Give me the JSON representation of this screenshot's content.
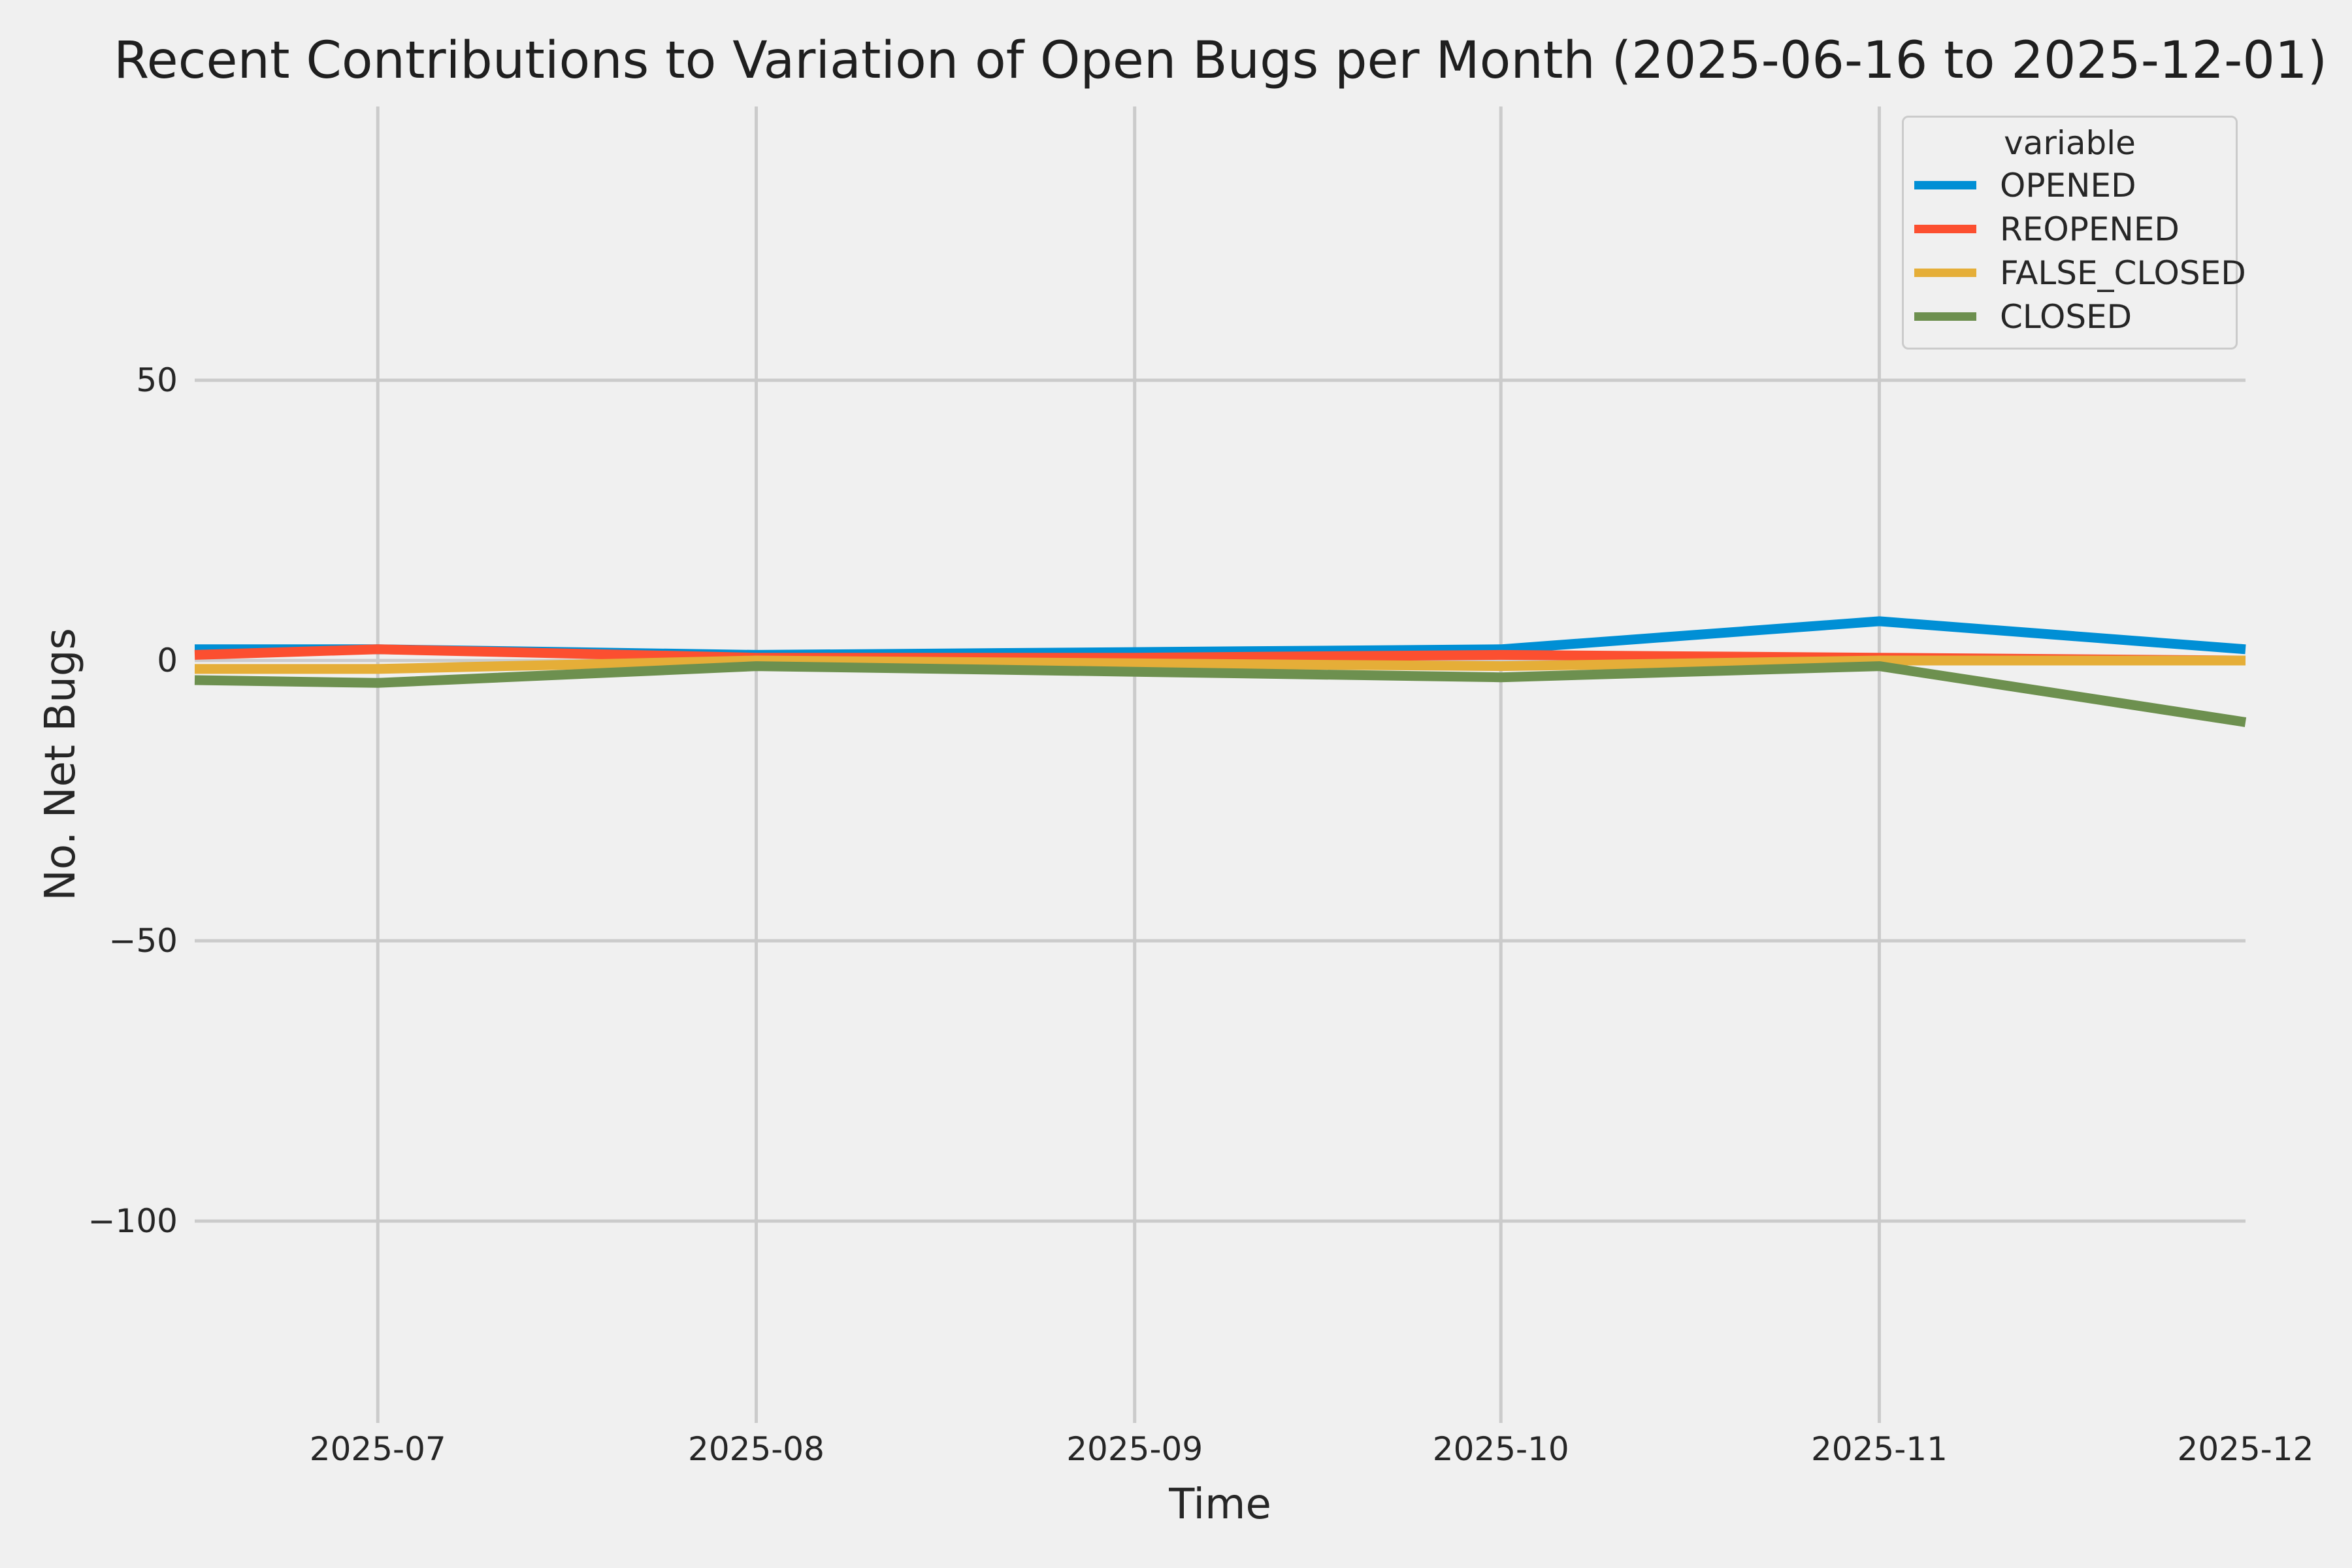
{
  "title": "Recent Contributions to Variation of Open Bugs per Month (2025-06-16 to 2025-12-01)",
  "x_axis": {
    "label": "Time",
    "ticks": [
      {
        "date": "2025-07-01",
        "label": "2025-07"
      },
      {
        "date": "2025-08-01",
        "label": "2025-08"
      },
      {
        "date": "2025-09-01",
        "label": "2025-09"
      },
      {
        "date": "2025-10-01",
        "label": "2025-10"
      },
      {
        "date": "2025-11-01",
        "label": "2025-11"
      },
      {
        "date": "2025-12-01",
        "label": "2025-12"
      }
    ]
  },
  "y_axis": {
    "label": "No. Net Bugs",
    "ticks": [
      {
        "value": 50,
        "label": "50"
      },
      {
        "value": 0,
        "label": "0"
      },
      {
        "value": -50,
        "label": "−50"
      },
      {
        "value": -100,
        "label": "−100"
      }
    ]
  },
  "legend": {
    "title": "variable",
    "entries": [
      {
        "label": "OPENED",
        "color": "#008fd5"
      },
      {
        "label": "REOPENED",
        "color": "#fc4f30"
      },
      {
        "label": "FALSE_CLOSED",
        "color": "#e5ae38"
      },
      {
        "label": "CLOSED",
        "color": "#6d904f"
      }
    ]
  },
  "colors": {
    "background": "#f0f0f0",
    "grid": "#cbcbcb",
    "text": "#262626"
  },
  "chart_data": {
    "type": "line",
    "title": "Recent Contributions to Variation of Open Bugs per Month (2025-06-16 to 2025-12-01)",
    "xlabel": "Time",
    "ylabel": "No. Net Bugs",
    "x": [
      "2025-06-16",
      "2025-07-01",
      "2025-08-01",
      "2025-09-01",
      "2025-10-01",
      "2025-11-01",
      "2025-12-01"
    ],
    "series": [
      {
        "name": "OPENED",
        "color": "#008fd5",
        "values": [
          2,
          2,
          1,
          1.5,
          2,
          7,
          2
        ]
      },
      {
        "name": "REOPENED",
        "color": "#fc4f30",
        "values": [
          1,
          2,
          0.5,
          0.5,
          1,
          0.5,
          0
        ]
      },
      {
        "name": "FALSE_CLOSED",
        "color": "#e5ae38",
        "values": [
          -1.5,
          -1.5,
          0,
          -0.5,
          -1,
          0,
          0
        ]
      },
      {
        "name": "CLOSED",
        "color": "#6d904f",
        "values": [
          -3.5,
          -4,
          -1,
          -2,
          -3,
          -1,
          -11
        ]
      }
    ],
    "xlim": [
      "2025-06-16",
      "2025-12-01"
    ],
    "ylim": [
      -136,
      99
    ],
    "grid": true,
    "legend_position": "upper right"
  }
}
